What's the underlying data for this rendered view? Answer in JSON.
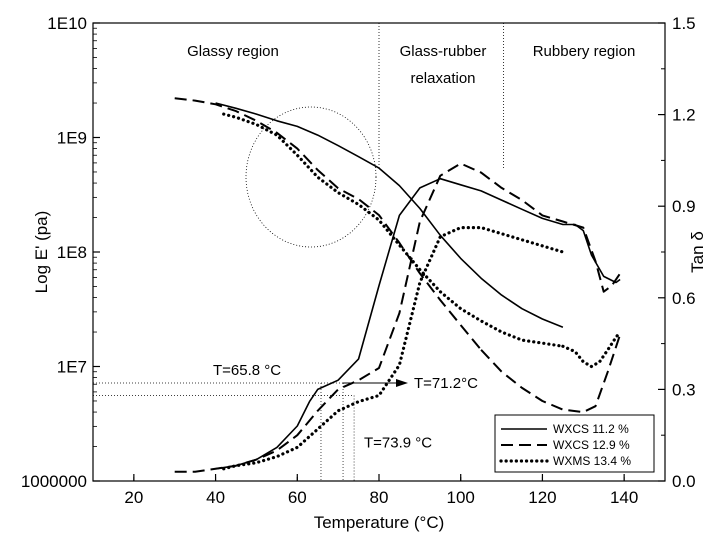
{
  "chart_data": {
    "type": "line",
    "xlabel": "Temperature (°C)",
    "ylabel_left": "Log E' (pa)",
    "ylabel_right": "Tan δ",
    "xlim": [
      10,
      150
    ],
    "ylim_left": [
      1000000,
      10000000000
    ],
    "ylim_right": [
      0.0,
      1.5
    ],
    "y_left_scale": "log",
    "x_ticks": [
      20,
      40,
      60,
      80,
      100,
      120,
      140
    ],
    "x_tick_labels": [
      "20",
      "40",
      "60",
      "80",
      "100",
      "120",
      "140"
    ],
    "y_left_ticks": [
      1000000,
      10000000,
      100000000,
      1000000000,
      10000000000
    ],
    "y_left_tick_labels": [
      "1000000",
      "1E7",
      "1E8",
      "1E9",
      "1E10"
    ],
    "y_right_ticks": [
      0.0,
      0.3,
      0.6,
      0.9,
      1.2,
      1.5
    ],
    "y_right_tick_labels": [
      "0.0",
      "0.3",
      "0.6",
      "0.9",
      "1.2",
      "1.5"
    ],
    "grid": false,
    "legend_position": "bottom-right",
    "regions": [
      {
        "label": "Glassy region",
        "boundary_end": 80
      },
      {
        "label_lines": [
          "Glass-rubber",
          "relaxation"
        ],
        "boundary_start": 80,
        "boundary_end": 110.5
      },
      {
        "label": "Rubbery region",
        "boundary_start": 110.5
      }
    ],
    "annotations": [
      {
        "text": "T=65.8 °C",
        "x": 65.8,
        "tan": 0.321
      },
      {
        "text": "T=71.2°C",
        "x": 71.2,
        "tan": 0.321
      },
      {
        "text": "T=73.9 °C",
        "x": 73.9,
        "tan": 0.28
      }
    ],
    "series": [
      {
        "name": "WXCS 11.2 %",
        "style": "solid",
        "quantity": "modulus",
        "axis": "left",
        "x": [
          40,
          45,
          50,
          55,
          60,
          65,
          70,
          75,
          80,
          85,
          90,
          95,
          100,
          105,
          110,
          115,
          120,
          125
        ],
        "y": [
          2000000000,
          1800000000,
          1600000000,
          1400000000,
          1250000000,
          1050000000,
          850000000,
          680000000,
          540000000,
          380000000,
          240000000,
          140000000,
          88000000,
          59000000,
          42000000,
          32000000,
          26000000,
          22000000
        ]
      },
      {
        "name": "WXCS 12.9 %",
        "style": "dashed",
        "quantity": "modulus",
        "axis": "left",
        "x": [
          30,
          35,
          40,
          45,
          50,
          55,
          60,
          65,
          70,
          75,
          80,
          85,
          90,
          95,
          100,
          105
        ],
        "y": [
          2200000000,
          2100000000,
          1950000000,
          1700000000,
          1400000000,
          1100000000,
          800000000,
          520000000,
          360000000,
          290000000,
          210000000,
          120000000,
          65000000,
          38000000,
          23000000,
          14000000
        ]
      },
      {
        "name": "WXMS 13.4 %",
        "style": "dotted",
        "quantity": "modulus",
        "axis": "left",
        "x": [
          42,
          45,
          50,
          55,
          60,
          65,
          70,
          75,
          80,
          85,
          90,
          95,
          100,
          105,
          110,
          115,
          120,
          125
        ],
        "y": [
          1600000000,
          1500000000,
          1300000000,
          1050000000,
          700000000,
          450000000,
          330000000,
          260000000,
          190000000,
          115000000,
          70000000,
          45000000,
          32000000,
          25000000,
          20000000,
          17000000,
          16000000,
          15000000
        ]
      },
      {
        "name": "WXCS 11.2 %",
        "style": "solid",
        "quantity": "tan_delta",
        "axis": "right",
        "x": [
          40,
          45,
          50,
          55,
          60,
          63,
          65,
          70,
          75,
          80,
          85,
          90,
          95,
          100,
          105,
          110,
          115,
          120,
          125,
          128,
          130,
          132,
          135,
          138,
          139
        ],
        "y": [
          0.04,
          0.05,
          0.07,
          0.11,
          0.18,
          0.26,
          0.3,
          0.33,
          0.4,
          0.64,
          0.87,
          0.96,
          0.99,
          0.97,
          0.95,
          0.92,
          0.89,
          0.86,
          0.84,
          0.84,
          0.82,
          0.74,
          0.67,
          0.65,
          0.66
        ]
      },
      {
        "name": "WXCS 12.9 %",
        "style": "dashed",
        "quantity": "tan_delta",
        "axis": "right",
        "x": [
          30,
          35,
          40,
          45,
          50,
          55,
          60,
          65,
          70,
          75,
          80,
          85,
          90,
          95,
          100,
          105,
          110,
          115,
          120,
          125,
          130,
          133,
          135,
          137,
          139
        ],
        "y": [
          0.03,
          0.03,
          0.04,
          0.05,
          0.07,
          0.1,
          0.15,
          0.23,
          0.3,
          0.33,
          0.37,
          0.55,
          0.85,
          1.0,
          1.04,
          1.01,
          0.96,
          0.92,
          0.87,
          0.85,
          0.83,
          0.72,
          0.62,
          0.64,
          0.68
        ]
      },
      {
        "name": "WXMS 13.4 %",
        "style": "dotted",
        "quantity": "tan_delta",
        "axis": "right",
        "x": [
          42,
          45,
          50,
          55,
          60,
          65,
          70,
          75,
          80,
          85,
          90,
          95,
          100,
          105,
          110,
          115,
          120,
          125
        ],
        "y": [
          0.04,
          0.05,
          0.06,
          0.08,
          0.11,
          0.17,
          0.23,
          0.26,
          0.28,
          0.38,
          0.65,
          0.8,
          0.83,
          0.83,
          0.81,
          0.79,
          0.77,
          0.75
        ]
      }
    ],
    "extended_segments": [
      {
        "series_name": "WXCS 12.9 %",
        "style": "dashed",
        "axis": "left",
        "x": [
          105,
          110,
          115,
          120,
          125,
          130,
          133,
          136,
          139
        ],
        "y": [
          14000000,
          9000000,
          6500000,
          5000000,
          4200000,
          4000000,
          4500000,
          9000000,
          19000000
        ]
      },
      {
        "series_name": "WXMS 13.4 %",
        "style": "dotted",
        "axis": "left",
        "x": [
          125,
          128,
          130,
          132,
          134,
          136,
          138,
          139
        ],
        "y": [
          15000000,
          13500000,
          11000000,
          10000000,
          11000000,
          14000000,
          18000000,
          20000000
        ]
      }
    ],
    "legend": [
      {
        "name": "WXCS 11.2 %",
        "style": "solid"
      },
      {
        "name": "WXCS 12.9 %",
        "style": "dashed"
      },
      {
        "name": "WXMS 13.4 %",
        "style": "dotted"
      }
    ]
  }
}
